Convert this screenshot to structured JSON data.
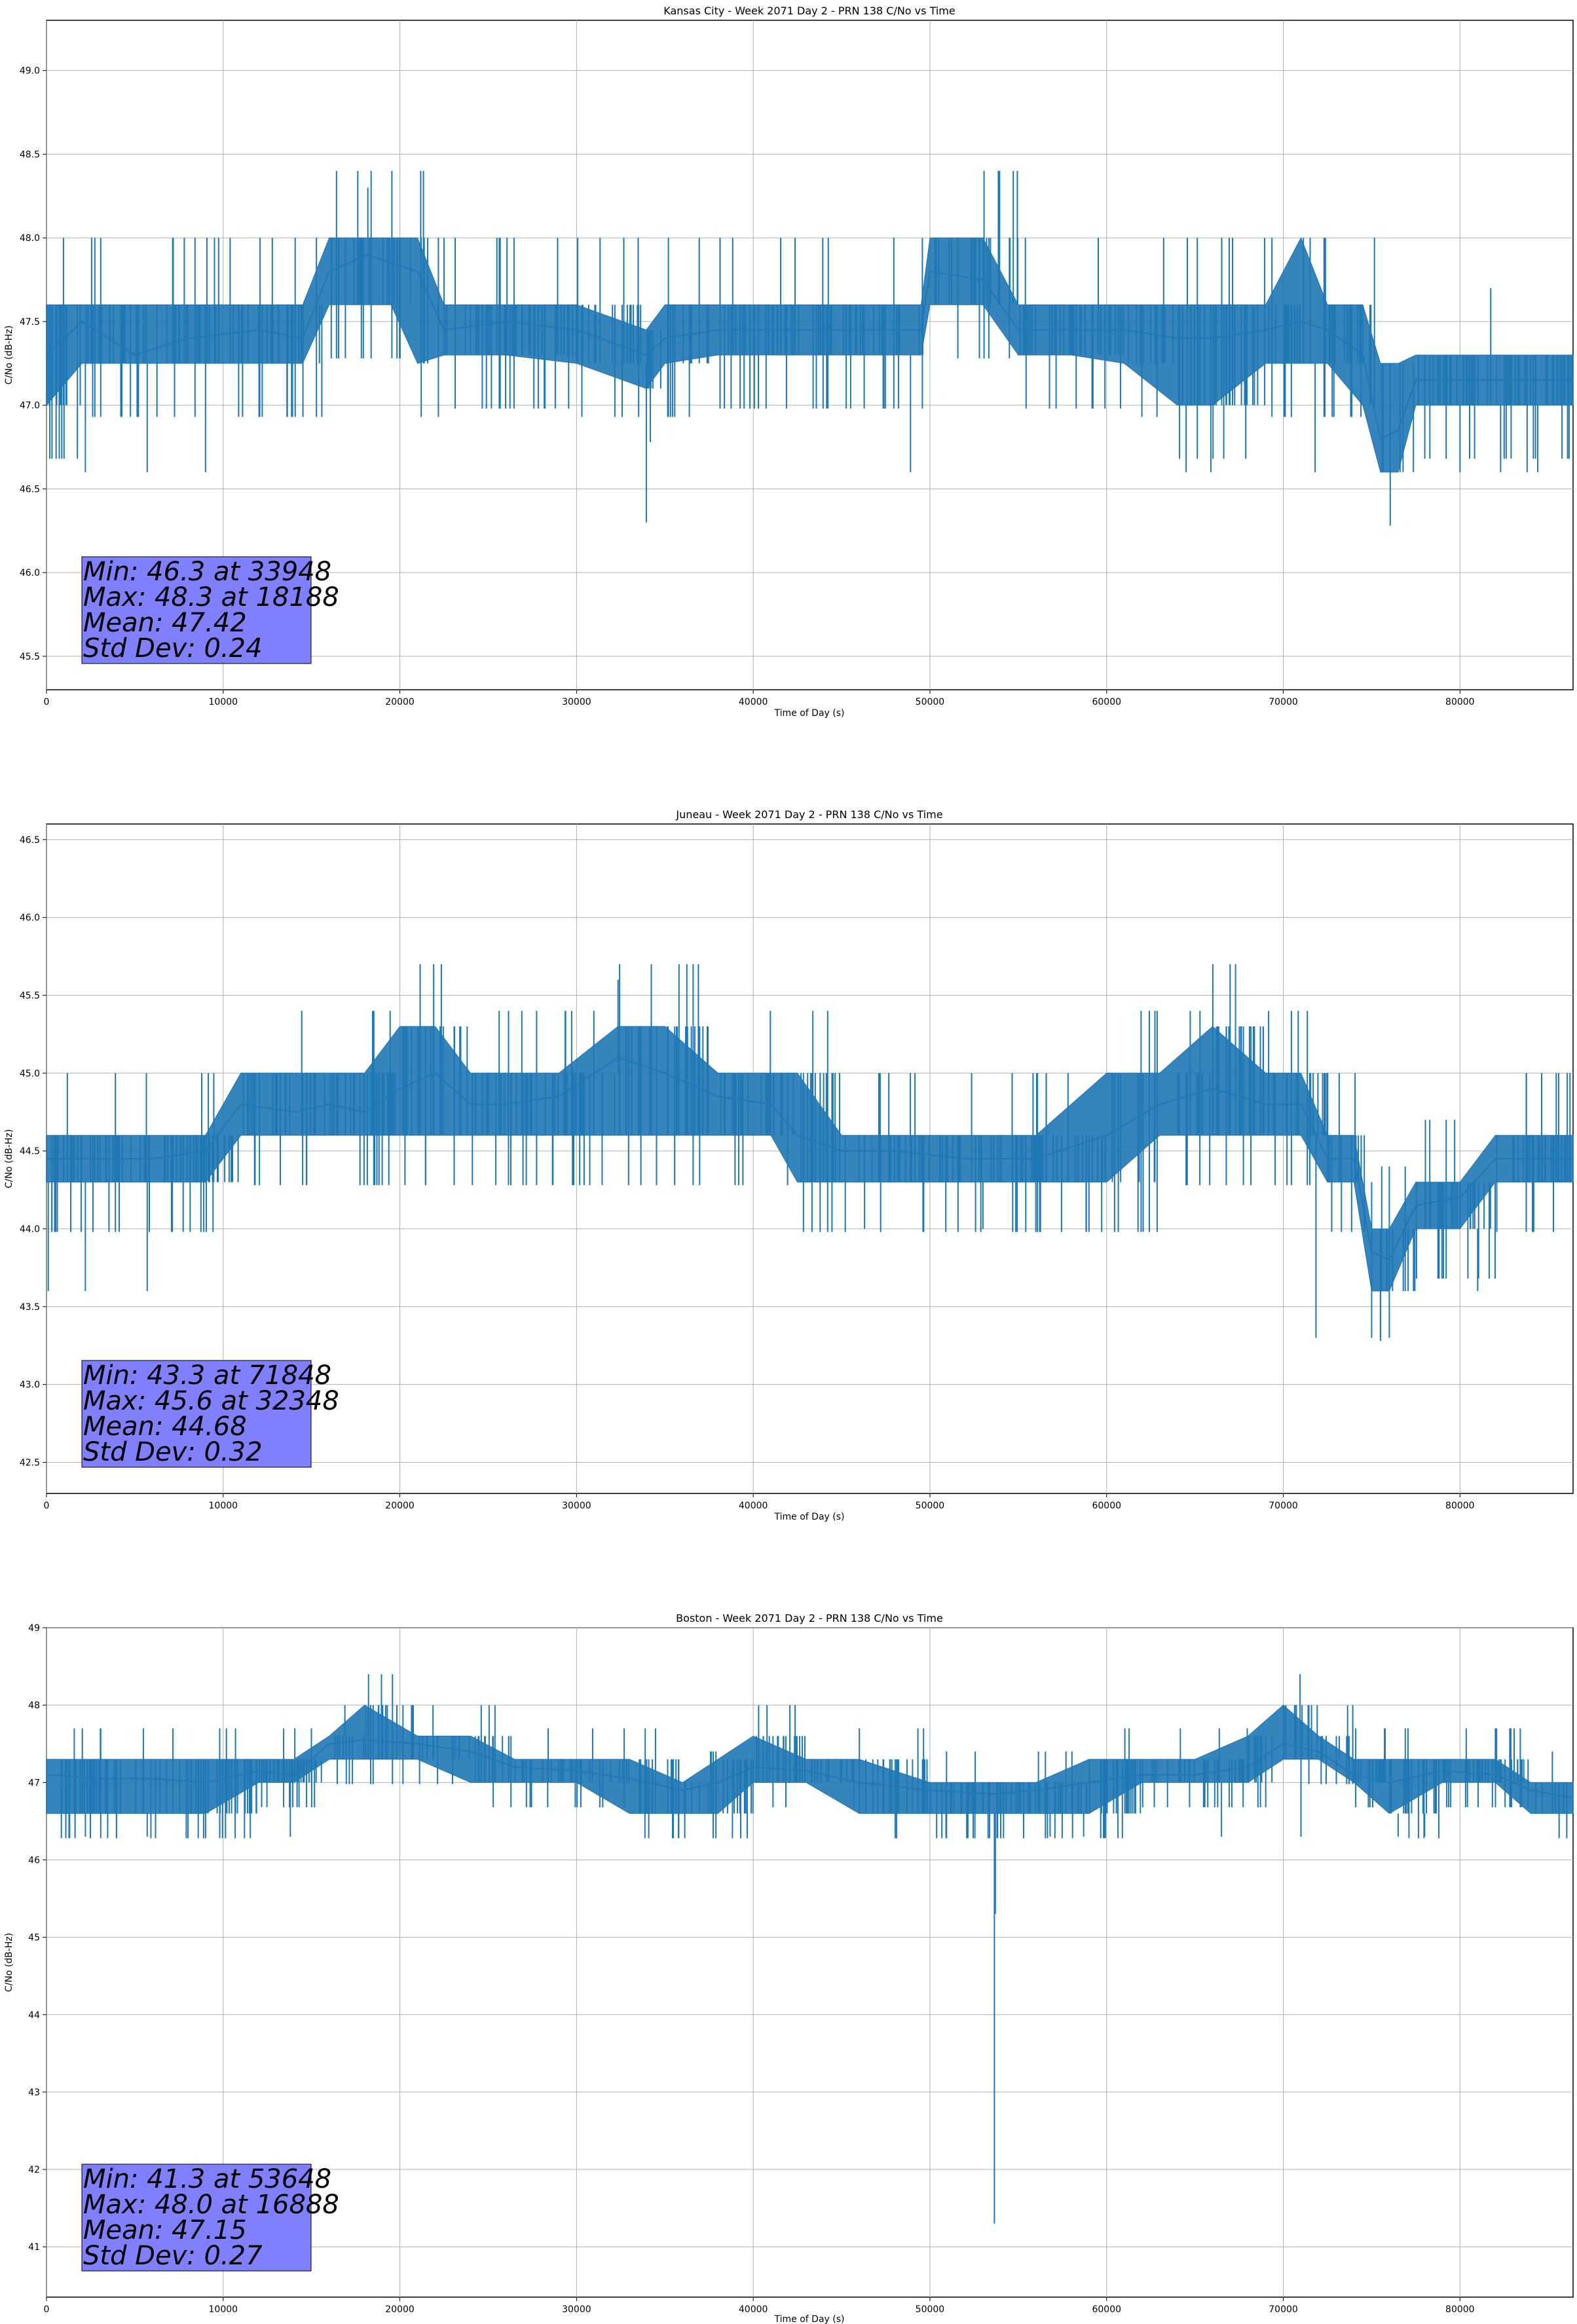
{
  "chart_data": [
    {
      "type": "line",
      "title": "Kansas City - Week 2071 Day 2 - PRN 138 C/No vs Time",
      "xlabel": "Time of Day (s)",
      "ylabel": "C/No (dB-Hz)",
      "xlim": [
        0,
        86400
      ],
      "ylim": [
        45.3,
        49.3
      ],
      "xticks": [
        0,
        10000,
        20000,
        30000,
        40000,
        50000,
        60000,
        70000,
        80000
      ],
      "yticks": [
        45.5,
        46.0,
        46.5,
        47.0,
        47.5,
        48.0,
        48.5,
        49.0
      ],
      "ytick_format": "0.0",
      "grid": true,
      "series_color": "#1f77b4",
      "series": [
        {
          "name": "C/No",
          "x": [
            0,
            2000,
            5000,
            8000,
            12000,
            14500,
            16000,
            18188,
            19500,
            21000,
            22500,
            26000,
            30000,
            33948,
            35000,
            38000,
            42000,
            46000,
            49500,
            50000,
            53000,
            55000,
            58000,
            61000,
            64000,
            66000,
            69000,
            71000,
            72500,
            74500,
            75500,
            76500,
            77500,
            81000,
            84000,
            86400
          ],
          "y": [
            47.3,
            47.5,
            47.3,
            47.4,
            47.45,
            47.4,
            47.8,
            47.9,
            47.85,
            47.8,
            47.45,
            47.5,
            47.45,
            47.3,
            47.4,
            47.45,
            47.45,
            47.45,
            47.45,
            47.8,
            47.75,
            47.45,
            47.45,
            47.45,
            47.4,
            47.4,
            47.45,
            47.5,
            47.45,
            47.3,
            46.8,
            46.85,
            47.15,
            47.15,
            47.15,
            47.15
          ],
          "band_low": [
            47.0,
            47.25,
            47.25,
            47.25,
            47.25,
            47.25,
            47.6,
            47.6,
            47.6,
            47.25,
            47.3,
            47.3,
            47.25,
            47.1,
            47.25,
            47.3,
            47.3,
            47.3,
            47.3,
            47.6,
            47.6,
            47.3,
            47.3,
            47.25,
            47.0,
            47.0,
            47.25,
            47.25,
            47.25,
            47.0,
            46.6,
            46.6,
            47.0,
            47.0,
            47.0,
            47.0
          ],
          "band_high": [
            47.6,
            47.6,
            47.6,
            47.6,
            47.6,
            47.6,
            48.0,
            48.0,
            48.0,
            48.0,
            47.6,
            47.6,
            47.6,
            47.45,
            47.6,
            47.6,
            47.6,
            47.6,
            47.6,
            48.0,
            48.0,
            47.6,
            47.6,
            47.6,
            47.6,
            47.6,
            47.6,
            48.0,
            47.6,
            47.6,
            47.25,
            47.25,
            47.3,
            47.3,
            47.3,
            47.3
          ]
        }
      ],
      "spikes": [
        {
          "x": 2200,
          "y": 46.6
        },
        {
          "x": 5700,
          "y": 46.6
        },
        {
          "x": 9000,
          "y": 46.6
        },
        {
          "x": 18188,
          "y": 48.3
        },
        {
          "x": 33948,
          "y": 46.3
        },
        {
          "x": 48900,
          "y": 46.6
        },
        {
          "x": 64500,
          "y": 46.6
        },
        {
          "x": 65900,
          "y": 46.6
        },
        {
          "x": 71800,
          "y": 46.6
        },
        {
          "x": 80000,
          "y": 46.6
        },
        {
          "x": 82300,
          "y": 46.6
        },
        {
          "x": 83800,
          "y": 46.6
        },
        {
          "x": 84400,
          "y": 46.6
        }
      ],
      "stats": [
        "Min: 46.3 at 33948",
        "Max: 48.3 at 18188",
        "Mean: 47.42",
        "Std Dev: 0.24"
      ],
      "stats_box_color": "#8080ff"
    },
    {
      "type": "line",
      "title": "Juneau - Week 2071 Day 2 - PRN 138 C/No vs Time",
      "xlabel": "Time of Day (s)",
      "ylabel": "C/No (dB-Hz)",
      "xlim": [
        0,
        86400
      ],
      "ylim": [
        42.3,
        46.6
      ],
      "xticks": [
        0,
        10000,
        20000,
        30000,
        40000,
        50000,
        60000,
        70000,
        80000
      ],
      "yticks": [
        42.5,
        43.0,
        43.5,
        44.0,
        44.5,
        45.0,
        45.5,
        46.0,
        46.5
      ],
      "ytick_format": "0.0",
      "grid": true,
      "series_color": "#1f77b4",
      "series": [
        {
          "name": "C/No",
          "x": [
            0,
            3000,
            6000,
            9000,
            11000,
            14000,
            16000,
            18000,
            20000,
            22000,
            24000,
            26000,
            29000,
            32348,
            35000,
            38000,
            41000,
            42500,
            45000,
            48000,
            52000,
            56000,
            60000,
            63000,
            66000,
            69000,
            71000,
            72500,
            74000,
            75000,
            76000,
            77500,
            80000,
            82000,
            84000,
            86400
          ],
          "y": [
            44.45,
            44.45,
            44.45,
            44.5,
            44.8,
            44.75,
            44.8,
            44.75,
            44.9,
            45.0,
            44.8,
            44.8,
            44.85,
            45.1,
            45.0,
            44.85,
            44.8,
            44.6,
            44.5,
            44.5,
            44.45,
            44.45,
            44.6,
            44.8,
            44.9,
            44.8,
            44.8,
            44.45,
            44.45,
            43.85,
            43.8,
            44.15,
            44.2,
            44.45,
            44.45,
            44.45
          ],
          "band_low": [
            44.3,
            44.3,
            44.3,
            44.3,
            44.6,
            44.6,
            44.6,
            44.6,
            44.6,
            44.6,
            44.6,
            44.6,
            44.6,
            44.6,
            44.6,
            44.6,
            44.6,
            44.3,
            44.3,
            44.3,
            44.3,
            44.3,
            44.3,
            44.6,
            44.6,
            44.6,
            44.6,
            44.3,
            44.3,
            43.6,
            43.6,
            44.0,
            44.0,
            44.3,
            44.3,
            44.3
          ],
          "band_high": [
            44.6,
            44.6,
            44.6,
            44.6,
            45.0,
            45.0,
            45.0,
            45.0,
            45.3,
            45.3,
            45.0,
            45.0,
            45.0,
            45.3,
            45.3,
            45.0,
            45.0,
            45.0,
            44.6,
            44.6,
            44.6,
            44.6,
            45.0,
            45.0,
            45.3,
            45.0,
            45.0,
            44.6,
            44.6,
            44.0,
            44.0,
            44.3,
            44.3,
            44.6,
            44.6,
            44.6
          ]
        }
      ],
      "spikes": [
        {
          "x": 100,
          "y": 43.6
        },
        {
          "x": 2200,
          "y": 43.6
        },
        {
          "x": 5700,
          "y": 43.6
        },
        {
          "x": 32348,
          "y": 45.6
        },
        {
          "x": 46300,
          "y": 44.0
        },
        {
          "x": 53000,
          "y": 44.0
        },
        {
          "x": 71848,
          "y": 43.3
        },
        {
          "x": 75000,
          "y": 43.3
        },
        {
          "x": 75500,
          "y": 43.3
        },
        {
          "x": 76000,
          "y": 43.3
        },
        {
          "x": 81000,
          "y": 43.6
        }
      ],
      "stats": [
        "Min: 43.3 at 71848",
        "Max: 45.6 at 32348",
        "Mean: 44.68",
        "Std Dev: 0.32"
      ],
      "stats_box_color": "#8080ff"
    },
    {
      "type": "line",
      "title": "Boston - Week 2071 Day 2 - PRN 138 C/No vs Time",
      "xlabel": "Time of Day (s)",
      "ylabel": "C/No (dB-Hz)",
      "xlim": [
        0,
        86400
      ],
      "ylim": [
        40.35,
        49.0
      ],
      "xticks": [
        0,
        10000,
        20000,
        30000,
        40000,
        50000,
        60000,
        70000,
        80000
      ],
      "yticks": [
        41,
        42,
        43,
        44,
        45,
        46,
        47,
        48,
        49
      ],
      "ytick_format": "0",
      "grid": true,
      "series_color": "#1f77b4",
      "series": [
        {
          "name": "C/No",
          "x": [
            0,
            3000,
            6000,
            9000,
            12000,
            14000,
            16000,
            18000,
            21000,
            24000,
            26500,
            30000,
            33000,
            36000,
            38000,
            40000,
            43000,
            46000,
            50000,
            53648,
            56000,
            59000,
            62000,
            65000,
            68000,
            70000,
            72000,
            74000,
            76000,
            79000,
            82000,
            84000,
            86400
          ],
          "y": [
            47.1,
            47.05,
            47.05,
            47.0,
            47.15,
            47.1,
            47.5,
            47.55,
            47.5,
            47.4,
            47.2,
            47.15,
            47.05,
            46.9,
            47.0,
            47.2,
            47.15,
            47.0,
            46.9,
            46.85,
            46.9,
            47.0,
            47.1,
            47.1,
            47.2,
            47.5,
            47.4,
            47.1,
            47.0,
            47.15,
            47.1,
            46.9,
            46.8
          ],
          "band_low": [
            46.6,
            46.6,
            46.6,
            46.6,
            47.0,
            47.0,
            47.3,
            47.3,
            47.3,
            47.0,
            47.0,
            47.0,
            46.6,
            46.6,
            46.6,
            47.0,
            47.0,
            46.6,
            46.6,
            46.6,
            46.6,
            46.6,
            47.0,
            47.0,
            47.0,
            47.3,
            47.3,
            47.0,
            46.6,
            47.0,
            47.0,
            46.6,
            46.6
          ],
          "band_high": [
            47.3,
            47.3,
            47.3,
            47.3,
            47.3,
            47.3,
            47.6,
            48.0,
            47.6,
            47.6,
            47.3,
            47.3,
            47.3,
            47.0,
            47.3,
            47.6,
            47.3,
            47.3,
            47.0,
            47.0,
            47.0,
            47.3,
            47.3,
            47.3,
            47.6,
            48.0,
            47.6,
            47.3,
            47.3,
            47.3,
            47.3,
            47.0,
            47.0
          ]
        }
      ],
      "spikes": [
        {
          "x": 2200,
          "y": 46.3
        },
        {
          "x": 5700,
          "y": 46.3
        },
        {
          "x": 13800,
          "y": 46.3
        },
        {
          "x": 16888,
          "y": 48.0
        },
        {
          "x": 53648,
          "y": 41.3
        },
        {
          "x": 53700,
          "y": 45.3
        },
        {
          "x": 56800,
          "y": 46.3
        },
        {
          "x": 58700,
          "y": 46.3
        },
        {
          "x": 66500,
          "y": 46.3
        },
        {
          "x": 71000,
          "y": 46.3
        },
        {
          "x": 76500,
          "y": 46.3
        },
        {
          "x": 78000,
          "y": 46.3
        }
      ],
      "stats": [
        "Min: 41.3 at 53648",
        "Max: 48.0 at 16888",
        "Mean: 47.15",
        "Std Dev: 0.27"
      ],
      "stats_box_color": "#8080ff"
    }
  ]
}
